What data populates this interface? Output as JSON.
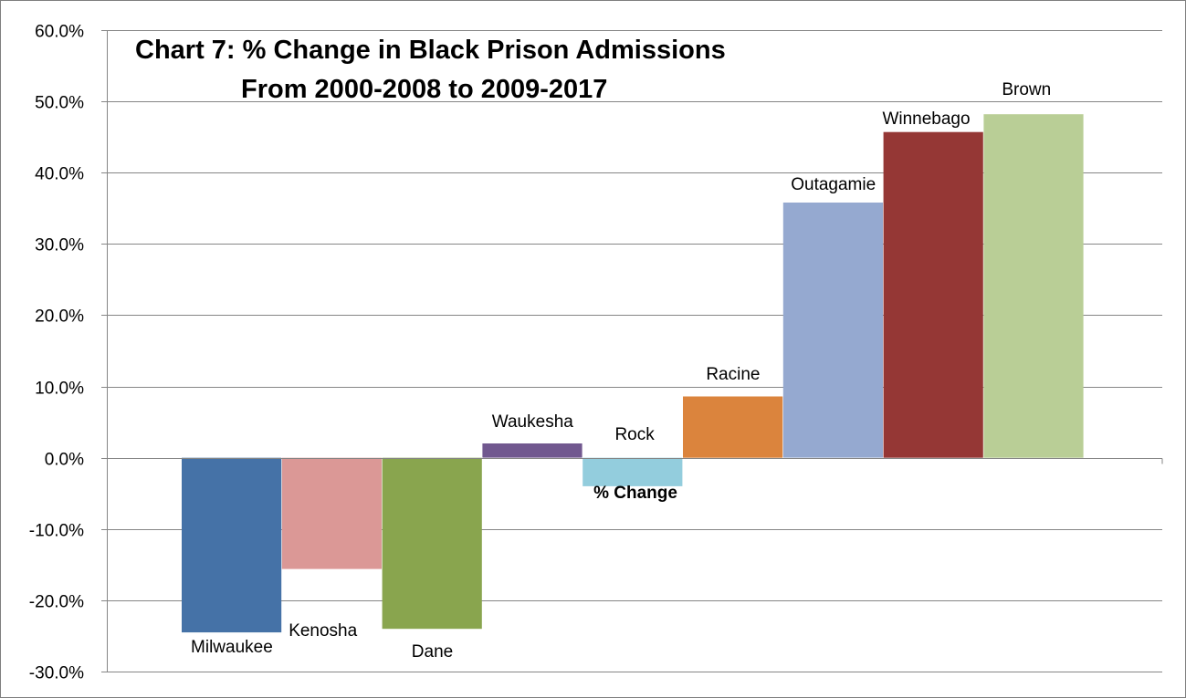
{
  "chart_data": {
    "type": "bar",
    "title": "Chart 7: % Change in Black Prison Admissions",
    "subtitle": "From 2000-2008 to 2009-2017",
    "categories": [
      "Milwaukee",
      "Kenosha",
      "Dane",
      "Waukesha",
      "Rock",
      "Racine",
      "Outagamie",
      "Winnebago",
      "Brown"
    ],
    "series": [
      {
        "name": "% Change",
        "values": [
          -24.5,
          -15.6,
          -24.0,
          2.0,
          -4.0,
          8.6,
          35.8,
          45.7,
          48.2
        ]
      }
    ],
    "colors": [
      "#4572A7",
      "#DB9896",
      "#89A54E",
      "#71588F",
      "#93CDDD",
      "#DB843D",
      "#95A9D0",
      "#953735",
      "#B9CE96"
    ],
    "ylim": [
      -30,
      60
    ],
    "ytick_step": 10,
    "ytick_labels": [
      "-30.0%",
      "-20.0%",
      "-10.0%",
      "0.0%",
      "10.0%",
      "20.0%",
      "30.0%",
      "40.0%",
      "50.0%",
      "60.0%"
    ],
    "grid": true,
    "legend": "none",
    "xlabel": "",
    "ylabel": ""
  }
}
